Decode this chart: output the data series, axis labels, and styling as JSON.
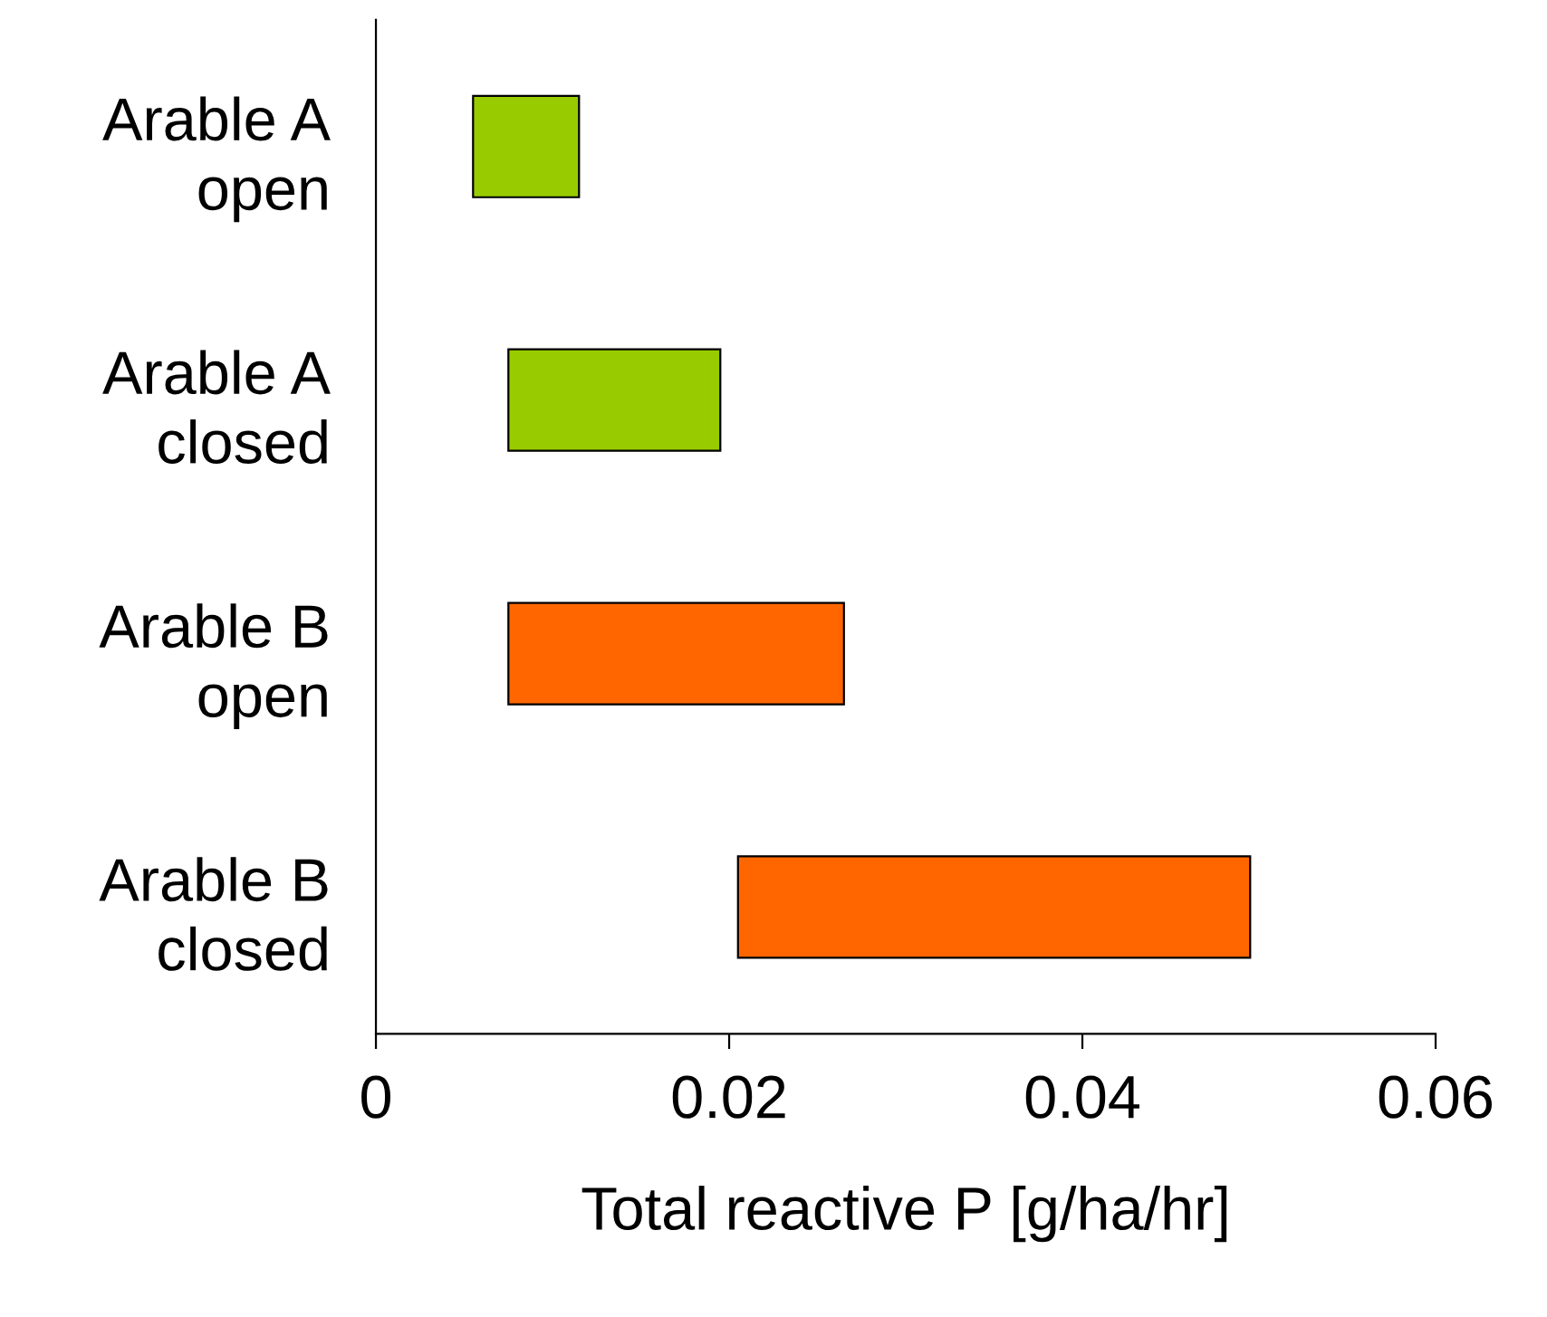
{
  "chart_data": {
    "type": "bar",
    "orientation": "horizontal",
    "xlabel": "Total reactive P [g/ha/hr]",
    "categories": [
      "Arable A\nopen",
      "Arable A\nclosed",
      "Arable B\nopen",
      "Arable B\nclosed"
    ],
    "values": [
      0.006,
      0.012,
      0.019,
      0.029
    ],
    "base": [
      0.0055,
      0.0075,
      0.0075,
      0.0205
    ],
    "colors": [
      "#99cc00",
      "#99cc00",
      "#ff6600",
      "#ff6600"
    ],
    "xlim": [
      0,
      0.06
    ],
    "xticks": [
      0,
      0.02,
      0.04,
      0.06
    ],
    "grid": false,
    "legend": false
  }
}
